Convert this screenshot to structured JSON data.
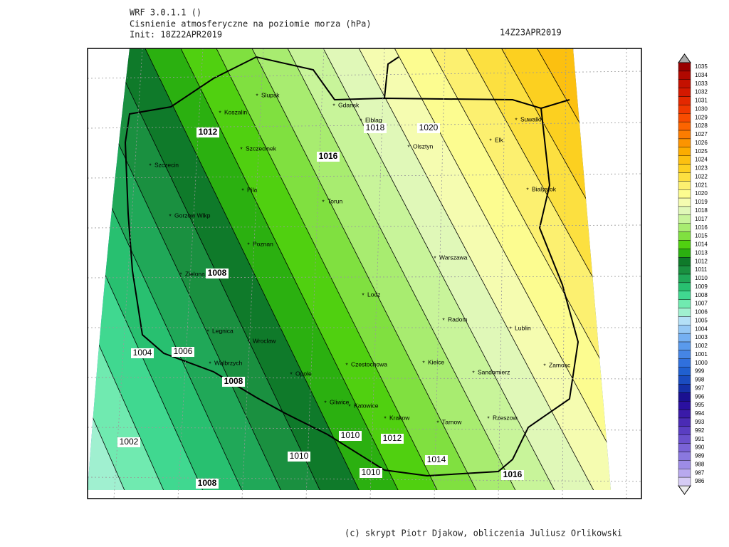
{
  "header": {
    "model": "WRF 3.0.1.1 ()",
    "title": "Cisnienie atmosferyczne na poziomie morza (hPa)",
    "init": "Init: 18Z22APR2019",
    "valid": "14Z23APR2019"
  },
  "footer": "(c) skrypt Piotr Djakow, obliczenia Juliusz Orlikowski",
  "cities": [
    "Slupsk",
    "Koszalin",
    "Gdansk",
    "Elblag",
    "Suwalki",
    "Szczecinek",
    "Szczecin",
    "Olsztyn",
    "Elk",
    "Pila",
    "Torun",
    "Bialystok",
    "Gorzow Wlkp",
    "Poznan",
    "Zielona Gora",
    "Warszawa",
    "Lodz",
    "Legnica",
    "Wroclaw",
    "Radom",
    "Lublin",
    "Walbrzych",
    "Opole",
    "Czestochowa",
    "Kielce",
    "Sandomierz",
    "Zamosc",
    "Gliwice",
    "Katowice",
    "Krakow",
    "Tarnow",
    "Rzeszow"
  ],
  "contour_labels": [
    1012,
    1018,
    1020,
    1016,
    1008,
    1004,
    1006,
    1008,
    1002,
    1010,
    1012,
    1010,
    1014,
    1010,
    1016,
    1008
  ],
  "colorbar": {
    "labels": [
      1035,
      1034,
      1033,
      1032,
      1031,
      1030,
      1029,
      1028,
      1027,
      1026,
      1025,
      1024,
      1023,
      1022,
      1021,
      1020,
      1019,
      1018,
      1017,
      1016,
      1015,
      1014,
      1013,
      1012,
      1011,
      1010,
      1009,
      1008,
      1007,
      1006,
      1005,
      1004,
      1003,
      1002,
      1001,
      1000,
      999,
      998,
      997,
      996,
      995,
      994,
      993,
      992,
      991,
      990,
      989,
      988,
      987,
      986
    ],
    "colors": [
      "#980000",
      "#b00800",
      "#c41000",
      "#d41800",
      "#e42800",
      "#f03800",
      "#f84c00",
      "#fc6400",
      "#fc7c00",
      "#fc9400",
      "#fcac00",
      "#fcc010",
      "#fcd020",
      "#fce040",
      "#fcf070",
      "#fcfc90",
      "#f5fcb0",
      "#e0f8b8",
      "#c8f49a",
      "#a8ec70",
      "#80e040",
      "#50d010",
      "#2bb010",
      "#0f7a2a",
      "#1a9040",
      "#20a858",
      "#28c070",
      "#40d890",
      "#70eab0",
      "#a0f0d0",
      "#b4e0f7",
      "#95c8f5",
      "#75b0f2",
      "#5a9aec",
      "#4585e5",
      "#3070dd",
      "#2060d0",
      "#1a4cc0",
      "#1530a8",
      "#1a1090",
      "#2a10a0",
      "#3a1aa8",
      "#4a2bb5",
      "#5a3ec2",
      "#6a50cc",
      "#7a63d6",
      "#8a78df",
      "#9d8ce6",
      "#b8a9ee",
      "#d6ccf5"
    ]
  }
}
